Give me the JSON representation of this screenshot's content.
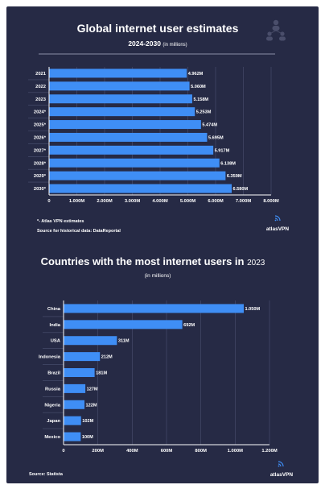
{
  "colors": {
    "background": "#262a45",
    "bar": "#3f8ef5",
    "axis": "#ffffff",
    "text": "#ffffff"
  },
  "top_section": {
    "footnote": "*- Atlas VPN estimates",
    "source": "Source for historical data: DataReportal",
    "brand": "atlasVPN",
    "decor_icon": "people-network-icon"
  },
  "bottom_section": {
    "source": "Source: Statista",
    "brand": "atlasVPN"
  },
  "chart_data": [
    {
      "type": "bar",
      "orientation": "horizontal",
      "title": "Global internet user estimates",
      "subtitle": "2024-2030",
      "subtitle_note": "(in millions)",
      "categories": [
        "2021",
        "2022",
        "2023",
        "2024*",
        "2025*",
        "2026*",
        "2027*",
        "2028*",
        "2029*",
        "2030*"
      ],
      "values": [
        4962,
        5060,
        5158,
        5253,
        5474,
        5695,
        5917,
        6138,
        6359,
        6580
      ],
      "data_labels": [
        "4.962M",
        "5.060M",
        "5.158M",
        "5.253M",
        "5.474M",
        "5.695M",
        "5.917M",
        "6.138M",
        "6.359M",
        "6.580M"
      ],
      "xlim": [
        0,
        8000
      ],
      "x_ticks": [
        0,
        1000,
        2000,
        3000,
        4000,
        5000,
        6000,
        7000,
        8000
      ],
      "x_tick_labels": [
        "0",
        "1.000M",
        "2.000M",
        "3.000M",
        "4.000M",
        "5.000M",
        "6.000M",
        "7.000M",
        "8.000M"
      ],
      "grid": true
    },
    {
      "type": "bar",
      "orientation": "horizontal",
      "title": "Countries with the most internet users in",
      "title_year": "2023",
      "subtitle": "(in millions)",
      "categories": [
        "China",
        "India",
        "USA",
        "Indonesia",
        "Brazil",
        "Russia",
        "Nigeria",
        "Japan",
        "Mexico"
      ],
      "values": [
        1050,
        692,
        311,
        212,
        181,
        127,
        122,
        102,
        100
      ],
      "data_labels": [
        "1.050M",
        "692M",
        "311M",
        "212M",
        "181M",
        "127M",
        "122M",
        "102M",
        "100M"
      ],
      "xlim": [
        0,
        1200
      ],
      "x_ticks": [
        0,
        200,
        400,
        600,
        800,
        1000,
        1200
      ],
      "x_tick_labels": [
        "0",
        "200M",
        "400M",
        "600M",
        "800M",
        "1.000M",
        "1.200M"
      ],
      "grid": true
    }
  ]
}
